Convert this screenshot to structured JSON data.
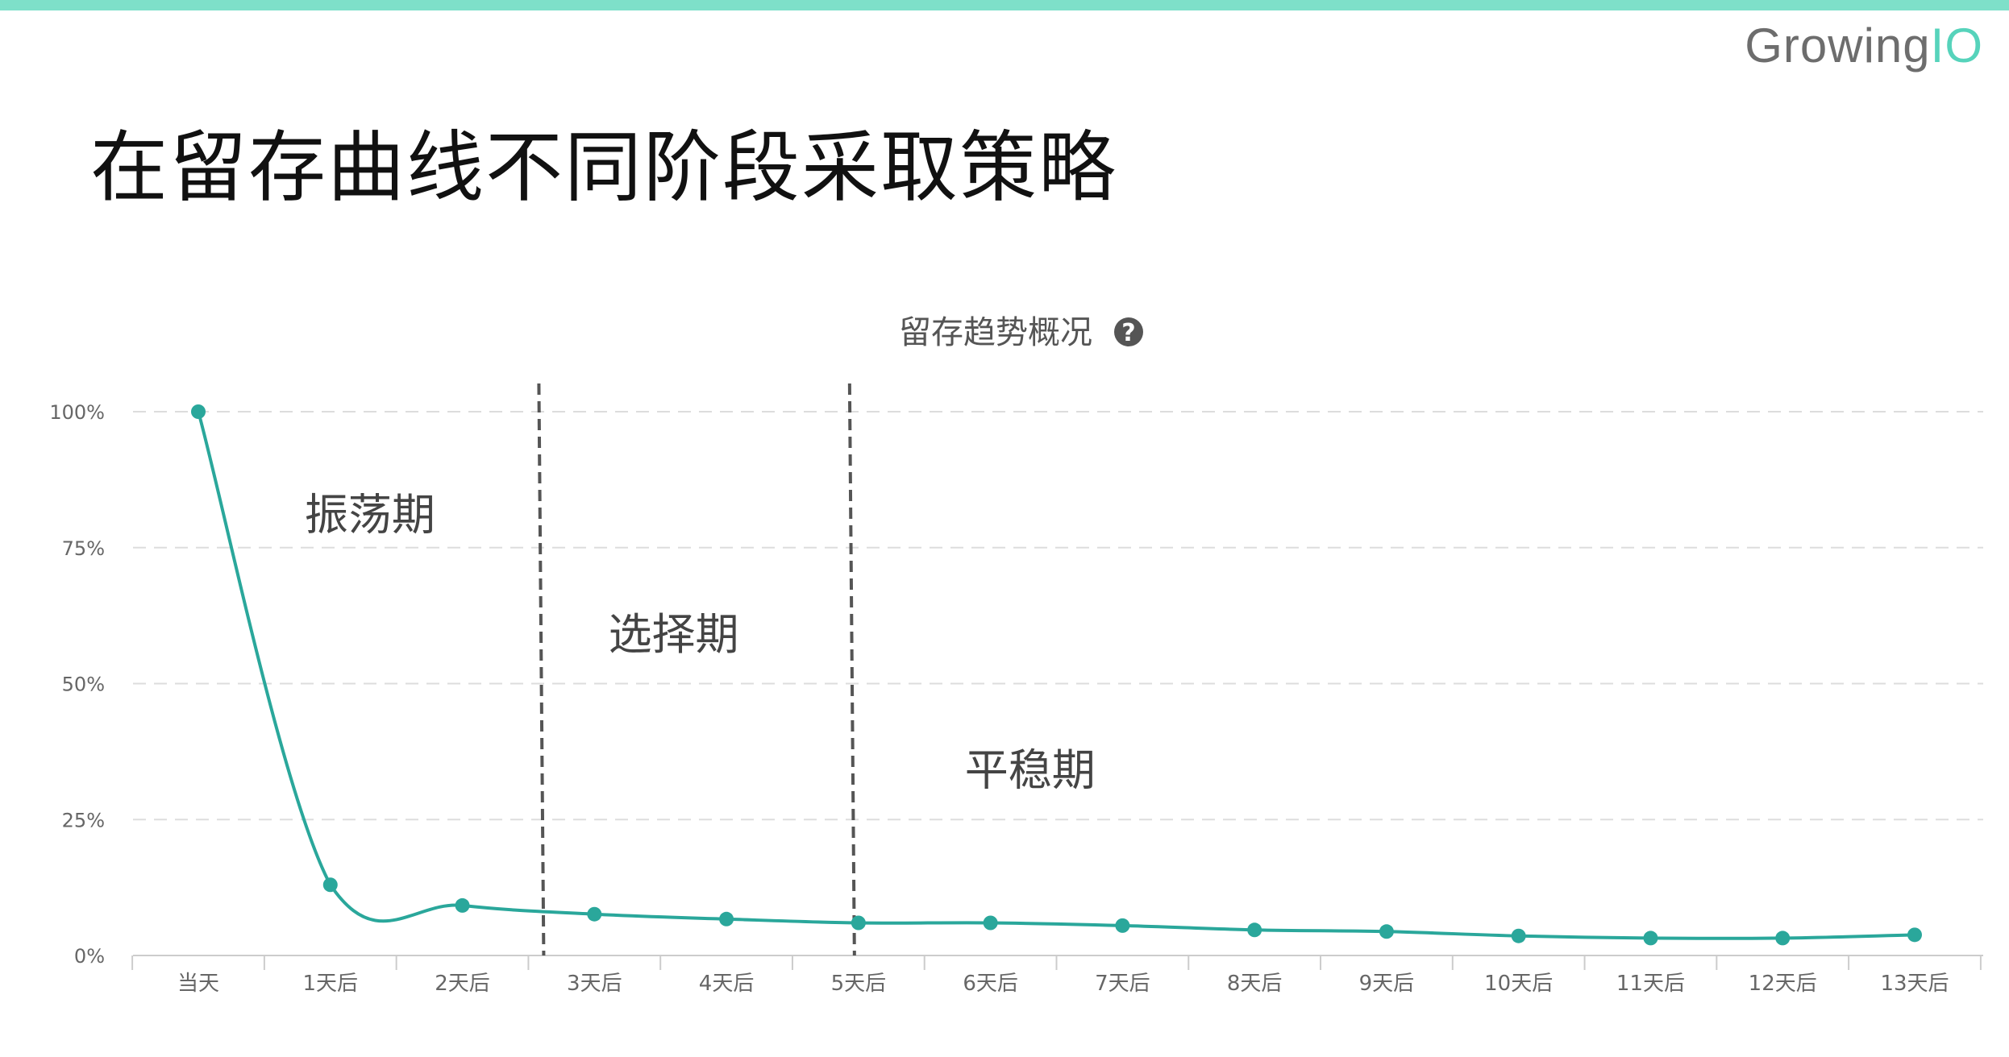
{
  "colors": {
    "top_bar": "#7ee0c9",
    "line": "#2aa79b",
    "grid": "#dddddd",
    "divider": "#555555",
    "help_icon": "#555555"
  },
  "logo": {
    "growing": "Growing",
    "io": "IO"
  },
  "slide_title": "在留存曲线不同阶段采取策略",
  "help_icon": "question-circle-icon",
  "chart_data": {
    "type": "line",
    "title": "留存趋势概况",
    "xlabel": "",
    "ylabel": "",
    "categories": [
      "当天",
      "1天后",
      "2天后",
      "3天后",
      "4天后",
      "5天后",
      "6天后",
      "7天后",
      "8天后",
      "9天后",
      "10天后",
      "11天后",
      "12天后",
      "13天后"
    ],
    "series": [
      {
        "values": [
          100,
          13,
          9.2,
          7.6,
          6.7,
          6.0,
          6.0,
          5.5,
          4.7,
          4.4,
          3.6,
          3.2,
          3.2,
          3.8
        ]
      }
    ],
    "ylim": [
      0,
      100
    ],
    "yticks": [
      "0%",
      "25%",
      "50%",
      "75%",
      "100%"
    ],
    "ytick_values": [
      0,
      25,
      50,
      75,
      100
    ],
    "grid": "horizontal dashed",
    "legend": "none",
    "phase_dividers_between": [
      [
        2,
        3
      ],
      [
        5,
        5
      ]
    ],
    "phases": [
      {
        "label": "振荡期",
        "x_center": 1.3,
        "y": 81
      },
      {
        "label": "选择期",
        "x_center": 3.6,
        "y": 59
      },
      {
        "label": "平稳期",
        "x_center": 6.3,
        "y": 34
      }
    ]
  }
}
